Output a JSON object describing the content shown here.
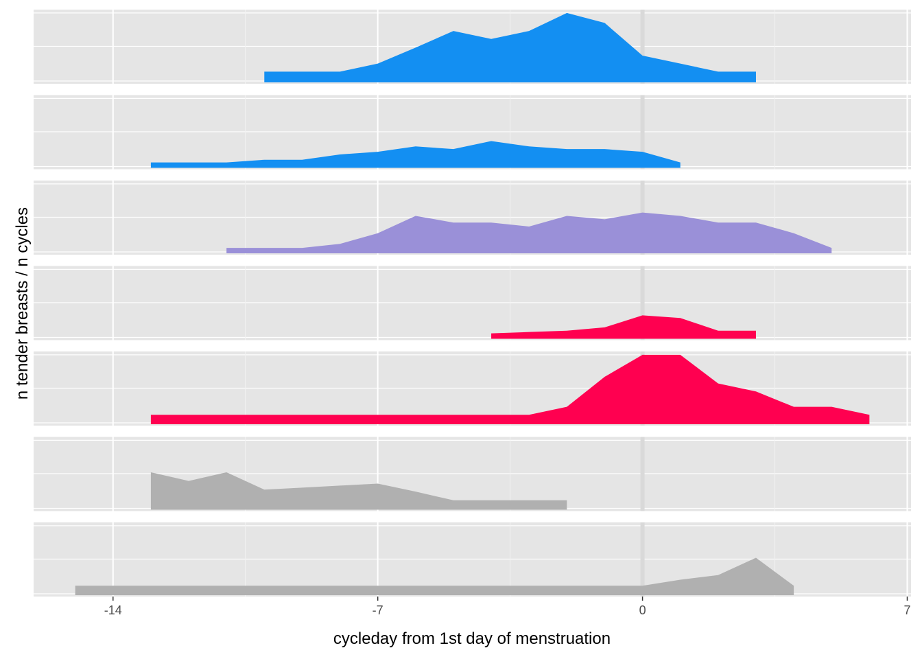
{
  "chart_data": {
    "type": "area",
    "layout": "stacked-facets",
    "xlabel": "cycleday from 1st day of menstruation",
    "ylabel": "n tender breasts / n cycles",
    "xlim": [
      -16.1,
      7.1
    ],
    "xticks": [
      -14,
      -7,
      0,
      7
    ],
    "xtick_labels": [
      "-14",
      "-7",
      "0",
      "7"
    ],
    "reference_line_x": 0,
    "grid": true,
    "panels": [
      {
        "color": "#138ff2",
        "ylim": [
          0,
          1.05
        ],
        "x": [
          -10,
          -9,
          -8,
          -7,
          -6,
          -5,
          -4,
          -3,
          -2,
          -1,
          0,
          1,
          2,
          3
        ],
        "y": [
          0.12,
          0.12,
          0.12,
          0.24,
          0.48,
          0.73,
          0.61,
          0.73,
          1.0,
          0.85,
          0.36,
          0.24,
          0.12,
          0.12
        ]
      },
      {
        "color": "#138ff2",
        "ylim": [
          0,
          1.05
        ],
        "x": [
          -13,
          -12,
          -11,
          -10,
          -9,
          -8,
          -7,
          -6,
          -5,
          -4,
          -3,
          -2,
          -1,
          0,
          1
        ],
        "y": [
          0.04,
          0.04,
          0.04,
          0.08,
          0.08,
          0.16,
          0.2,
          0.28,
          0.24,
          0.36,
          0.28,
          0.24,
          0.24,
          0.2,
          0.04
        ]
      },
      {
        "color": "#9a90d8",
        "ylim": [
          0,
          1.05
        ],
        "x": [
          -11,
          -10,
          -9,
          -8,
          -7,
          -6,
          -5,
          -4,
          -3,
          -2,
          -1,
          0,
          1,
          2,
          3,
          4,
          5
        ],
        "y": [
          0.04,
          0.04,
          0.04,
          0.1,
          0.26,
          0.52,
          0.42,
          0.42,
          0.36,
          0.52,
          0.47,
          0.57,
          0.52,
          0.42,
          0.42,
          0.26,
          0.04
        ]
      },
      {
        "color": "#ff0050",
        "ylim": [
          0,
          1.05
        ],
        "x": [
          -4,
          -3,
          -2,
          -1,
          0,
          1,
          2,
          3
        ],
        "y": [
          0.04,
          0.06,
          0.08,
          0.13,
          0.31,
          0.27,
          0.08,
          0.08
        ]
      },
      {
        "color": "#ff0050",
        "ylim": [
          0,
          1.05
        ],
        "x": [
          -13,
          -12,
          -11,
          -10,
          -9,
          -8,
          -7,
          -6,
          -5,
          -4,
          -3,
          -2,
          -1,
          0,
          1,
          2,
          3,
          4,
          5,
          6
        ],
        "y": [
          0.1,
          0.1,
          0.1,
          0.1,
          0.1,
          0.1,
          0.1,
          0.1,
          0.1,
          0.1,
          0.1,
          0.22,
          0.67,
          1.0,
          1.0,
          0.57,
          0.45,
          0.22,
          0.22,
          0.1
        ]
      },
      {
        "color": "#b0b0b0",
        "ylim": [
          0,
          1.05
        ],
        "x": [
          -13,
          -12,
          -11,
          -10,
          -9,
          -8,
          -7,
          -6,
          -5,
          -4,
          -3,
          -2
        ],
        "y": [
          0.52,
          0.39,
          0.52,
          0.26,
          0.29,
          0.32,
          0.35,
          0.23,
          0.1,
          0.1,
          0.1,
          0.1
        ]
      },
      {
        "color": "#b0b0b0",
        "ylim": [
          0,
          1.05
        ],
        "x": [
          -15,
          -14,
          -13,
          -12,
          -11,
          -10,
          -9,
          -8,
          -7,
          -6,
          -5,
          -4,
          -3,
          -2,
          -1,
          0,
          1,
          2,
          3,
          4
        ],
        "y": [
          0.1,
          0.1,
          0.1,
          0.1,
          0.1,
          0.1,
          0.1,
          0.1,
          0.1,
          0.1,
          0.1,
          0.1,
          0.1,
          0.1,
          0.1,
          0.1,
          0.19,
          0.26,
          0.52,
          0.1
        ]
      }
    ]
  }
}
